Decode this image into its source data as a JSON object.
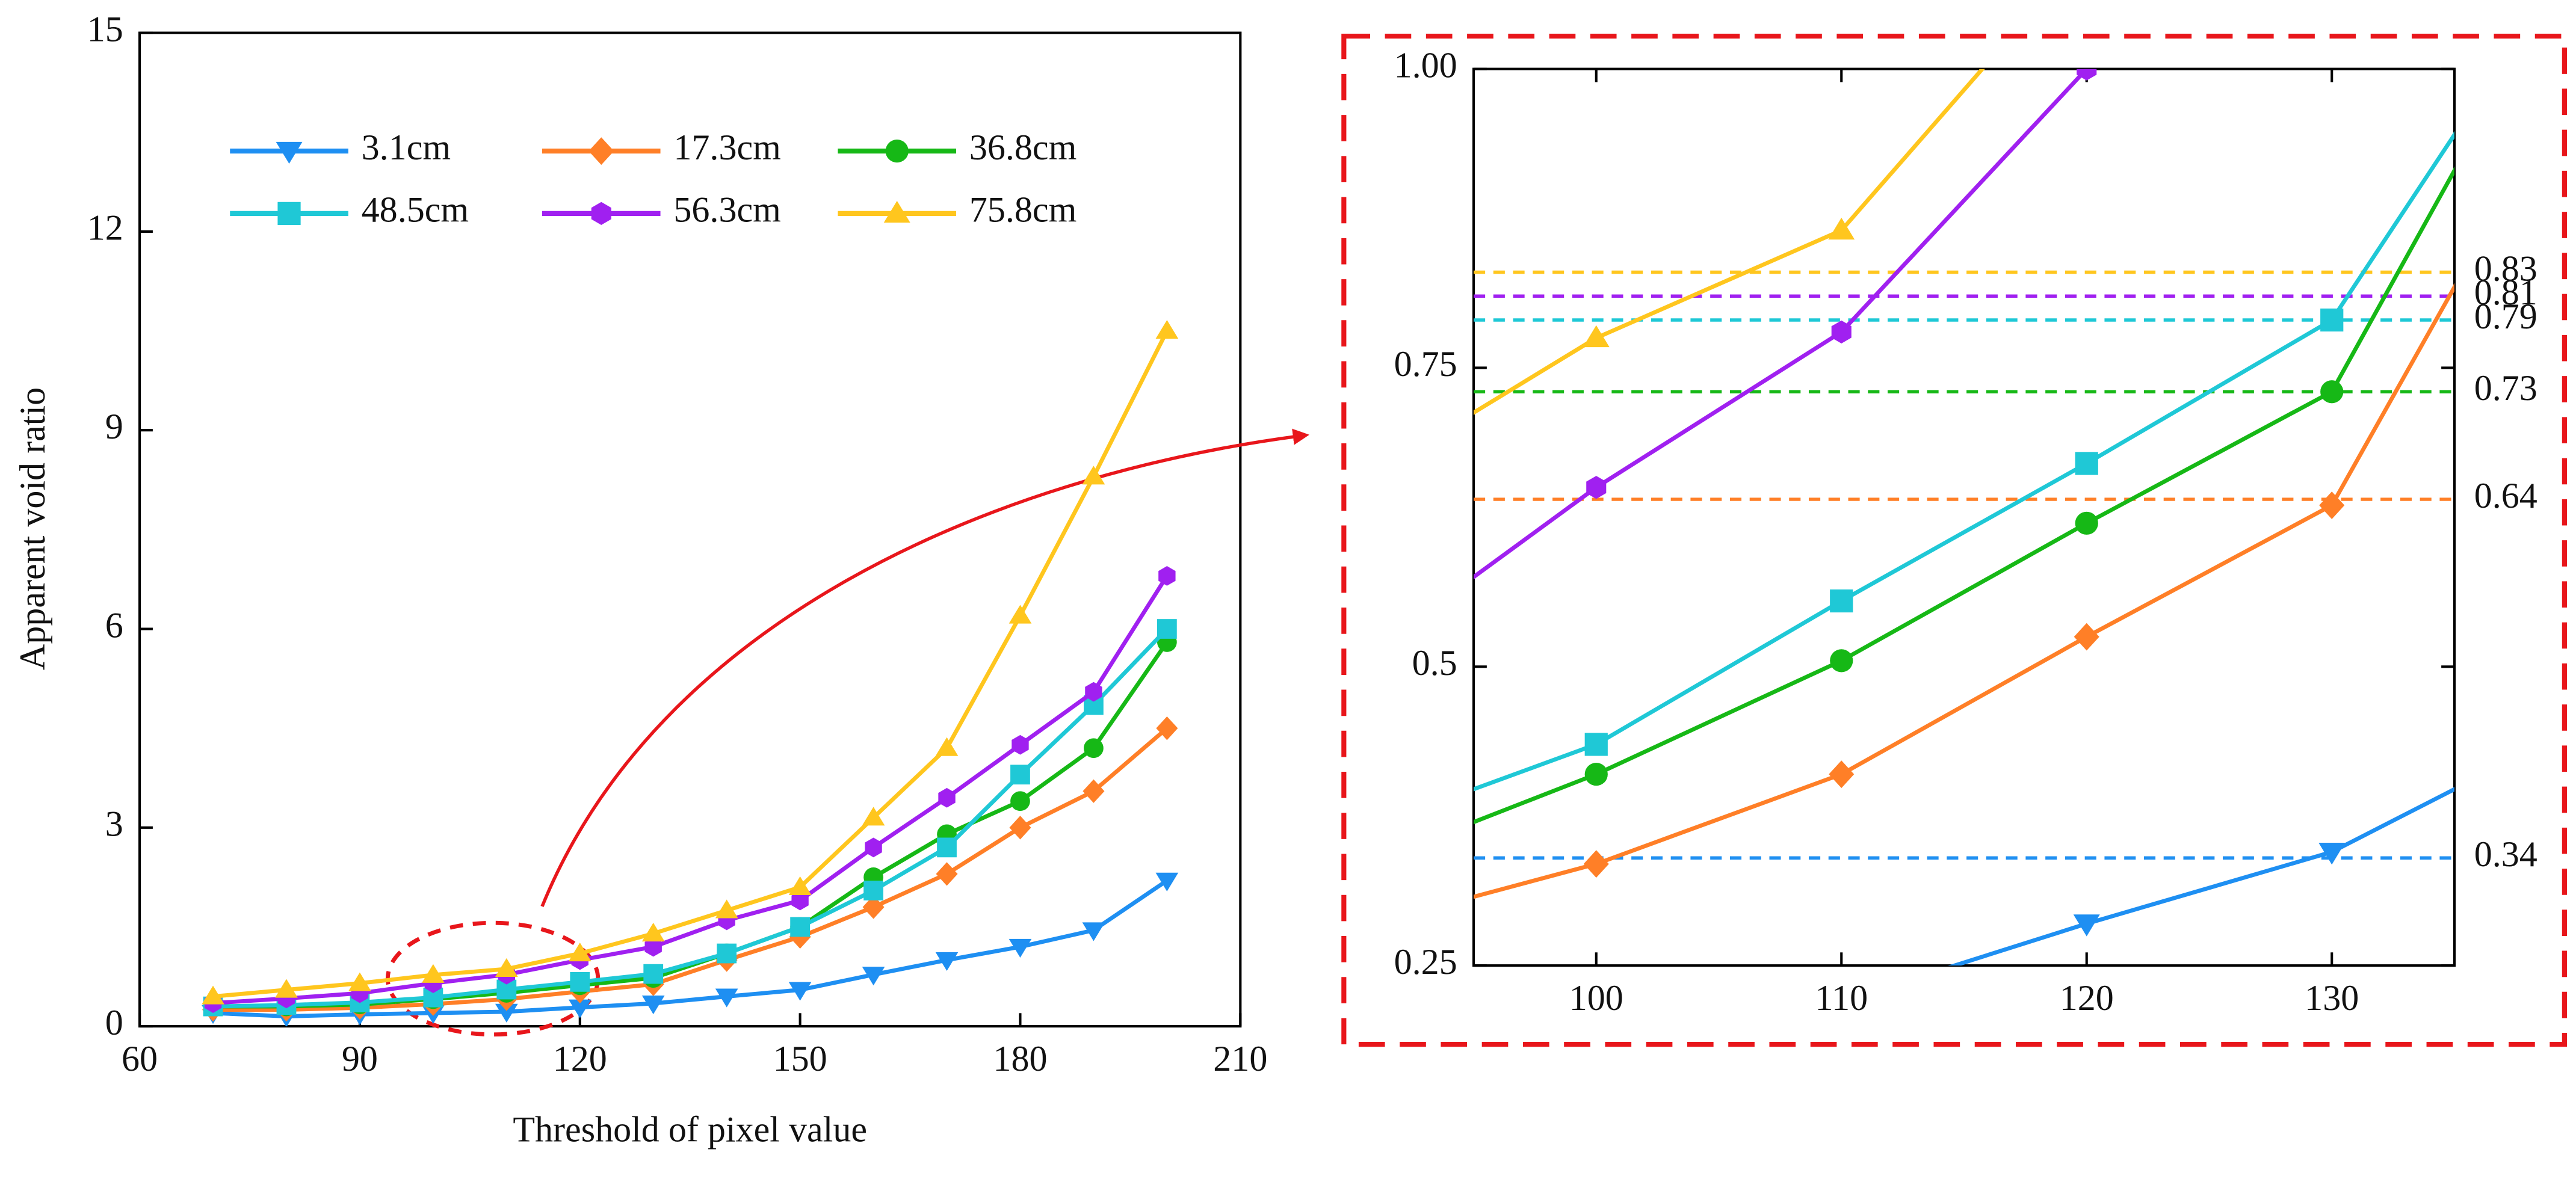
{
  "chart_data": [
    {
      "type": "line",
      "xlabel": "Threshold of pixel value",
      "ylabel": "Apparent void ratio",
      "x": [
        70,
        80,
        90,
        100,
        110,
        120,
        130,
        140,
        150,
        160,
        170,
        180,
        190,
        200
      ],
      "xlim": [
        60,
        210
      ],
      "xticks": [
        60,
        90,
        120,
        150,
        180,
        210
      ],
      "ylim": [
        0,
        15
      ],
      "yticks": [
        0,
        3,
        6,
        9,
        12,
        15
      ],
      "legend": "upper left",
      "series": [
        {
          "name": "3.1cm",
          "color": "#1e8ff2",
          "marker": "triangle-down",
          "values": [
            0.2,
            0.15,
            0.18,
            0.2,
            0.22,
            0.285,
            0.345,
            0.45,
            0.55,
            0.78,
            1.0,
            1.2,
            1.45,
            2.2
          ]
        },
        {
          "name": "17.3cm",
          "color": "#ff7f27",
          "marker": "diamond",
          "values": [
            0.25,
            0.25,
            0.28,
            0.335,
            0.41,
            0.525,
            0.635,
            1.0,
            1.35,
            1.8,
            2.3,
            3.0,
            3.55,
            4.5
          ]
        },
        {
          "name": "36.8cm",
          "color": "#16b816",
          "marker": "circle",
          "values": [
            0.3,
            0.3,
            0.33,
            0.41,
            0.505,
            0.62,
            0.73,
            1.1,
            1.5,
            2.25,
            2.9,
            3.4,
            4.2,
            5.8
          ]
        },
        {
          "name": "48.5cm",
          "color": "#1fc8d6",
          "marker": "square",
          "values": [
            0.3,
            0.32,
            0.36,
            0.435,
            0.555,
            0.67,
            0.79,
            1.1,
            1.5,
            2.05,
            2.7,
            3.8,
            4.85,
            6.0
          ]
        },
        {
          "name": "56.3cm",
          "color": "#a020f0",
          "marker": "hexagon",
          "values": [
            0.35,
            0.42,
            0.5,
            0.65,
            0.78,
            1.0,
            1.2,
            1.6,
            1.9,
            2.7,
            3.45,
            4.25,
            5.05,
            6.8
          ]
        },
        {
          "name": "75.8cm",
          "color": "#ffc61e",
          "marker": "triangle-up",
          "values": [
            0.45,
            0.55,
            0.65,
            0.775,
            0.865,
            1.1,
            1.4,
            1.75,
            2.1,
            3.15,
            4.2,
            6.2,
            8.3,
            10.5
          ]
        }
      ]
    },
    {
      "type": "line",
      "xlim": [
        95,
        135
      ],
      "xticks": [
        100,
        110,
        120,
        130
      ],
      "ylim": [
        0.25,
        1.0
      ],
      "yticks": [
        0.25,
        0.5,
        0.75,
        {
          "value": 1.0,
          "label": "1.00"
        }
      ],
      "reference_lines": [
        {
          "value": 0.83,
          "color": "#ffc61e"
        },
        {
          "value": 0.81,
          "color": "#a020f0"
        },
        {
          "value": 0.79,
          "color": "#1fc8d6"
        },
        {
          "value": 0.73,
          "color": "#16b816"
        },
        {
          "value": 0.64,
          "color": "#ff7f27"
        },
        {
          "value": 0.34,
          "color": "#1e8ff2"
        }
      ]
    }
  ]
}
